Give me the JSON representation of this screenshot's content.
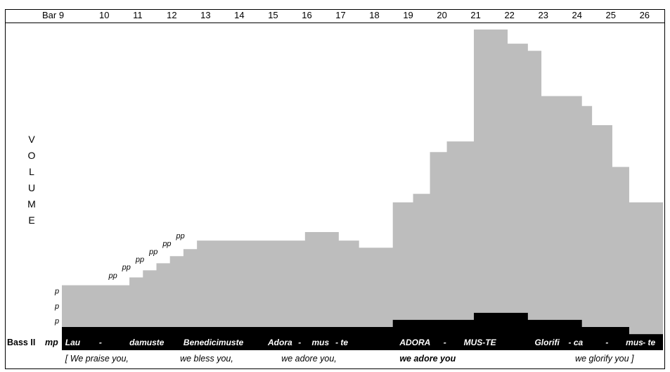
{
  "chart_data": {
    "type": "area",
    "title": "",
    "xlabel": "Bar",
    "ylabel": "VOLUME",
    "bar_label": "Bar 9",
    "bar_numbers": [
      "10",
      "11",
      "12",
      "13",
      "14",
      "15",
      "16",
      "17",
      "18",
      "19",
      "20",
      "21",
      "22",
      "23",
      "24",
      "25",
      "26"
    ],
    "bar_positions": [
      9,
      10,
      11,
      12,
      13,
      14,
      15,
      16,
      17,
      18,
      19,
      20,
      21,
      22,
      23,
      24,
      25,
      26
    ],
    "ylim": [
      0,
      420
    ],
    "series": [
      {
        "values": [
          [
            9.0,
            59
          ],
          [
            11.0,
            70
          ],
          [
            11.4,
            80
          ],
          [
            11.8,
            90
          ],
          [
            12.2,
            100
          ],
          [
            12.6,
            110
          ],
          [
            13.0,
            122
          ],
          [
            16.2,
            134
          ],
          [
            17.2,
            122
          ],
          [
            17.8,
            112
          ],
          [
            18.8,
            176
          ],
          [
            19.4,
            188
          ],
          [
            19.9,
            247
          ],
          [
            20.4,
            262
          ],
          [
            21.2,
            420
          ],
          [
            22.2,
            400
          ],
          [
            22.8,
            390
          ],
          [
            23.2,
            326
          ],
          [
            24.4,
            312
          ],
          [
            24.7,
            285
          ],
          [
            25.3,
            226
          ],
          [
            25.8,
            176
          ],
          [
            26.8,
            176
          ]
        ]
      },
      {
        "values": [
          [
            9.0,
            0
          ],
          [
            18.8,
            10
          ],
          [
            21.2,
            20
          ],
          [
            22.8,
            10
          ],
          [
            24.4,
            0
          ],
          [
            25.8,
            -10
          ],
          [
            26.8,
            -10
          ]
        ]
      }
    ],
    "dynamics": [
      {
        "bar": 9.0,
        "level": 0,
        "text": "p"
      },
      {
        "bar": 9.0,
        "level": 21,
        "text": "p"
      },
      {
        "bar": 9.0,
        "level": 42,
        "text": "p"
      },
      {
        "bar": 10.8,
        "level": 64,
        "text": "pp"
      },
      {
        "bar": 11.2,
        "level": 76,
        "text": "pp"
      },
      {
        "bar": 11.6,
        "level": 87,
        "text": "pp"
      },
      {
        "bar": 12.0,
        "level": 98,
        "text": "pp"
      },
      {
        "bar": 12.4,
        "level": 109,
        "text": "pp"
      },
      {
        "bar": 12.8,
        "level": 120,
        "text": "pp"
      }
    ],
    "staff_label": "Bass II",
    "staff_dynamic": "mp",
    "lyrics": [
      {
        "bar": 9.1,
        "text": "Lau"
      },
      {
        "bar": 10.1,
        "text": "-"
      },
      {
        "bar": 11.0,
        "text": "damuste"
      },
      {
        "bar": 12.6,
        "text": "Benedicimuste"
      },
      {
        "bar": 15.1,
        "text": "Adora"
      },
      {
        "bar": 16.0,
        "text": "-"
      },
      {
        "bar": 16.4,
        "text": "mus"
      },
      {
        "bar": 17.1,
        "text": "- te"
      },
      {
        "bar": 19.0,
        "text": "ADORA"
      },
      {
        "bar": 20.3,
        "text": "-"
      },
      {
        "bar": 20.9,
        "text": "MUS-TE"
      },
      {
        "bar": 23.0,
        "text": "Glorifi"
      },
      {
        "bar": 24.0,
        "text": "- ca"
      },
      {
        "bar": 25.1,
        "text": "-"
      },
      {
        "bar": 25.7,
        "text": "mus"
      },
      {
        "bar": 26.2,
        "text": "- te"
      }
    ],
    "translations": [
      {
        "bar": 9.1,
        "text": "[ We praise you,",
        "bold": false
      },
      {
        "bar": 12.5,
        "text": "we bless you,",
        "bold": false
      },
      {
        "bar": 15.5,
        "text": "we adore you,",
        "bold": false
      },
      {
        "bar": 19.0,
        "text": "we adore you",
        "bold": true
      },
      {
        "bar": 24.2,
        "text": "we glorify you  ]",
        "bold": false
      }
    ],
    "y_axis_letters": [
      "V",
      "O",
      "L",
      "U",
      "M",
      "E"
    ],
    "grid": false,
    "colors": {
      "volume": "#bdbdbd",
      "bass": "#000000",
      "frame": "#000000"
    }
  }
}
